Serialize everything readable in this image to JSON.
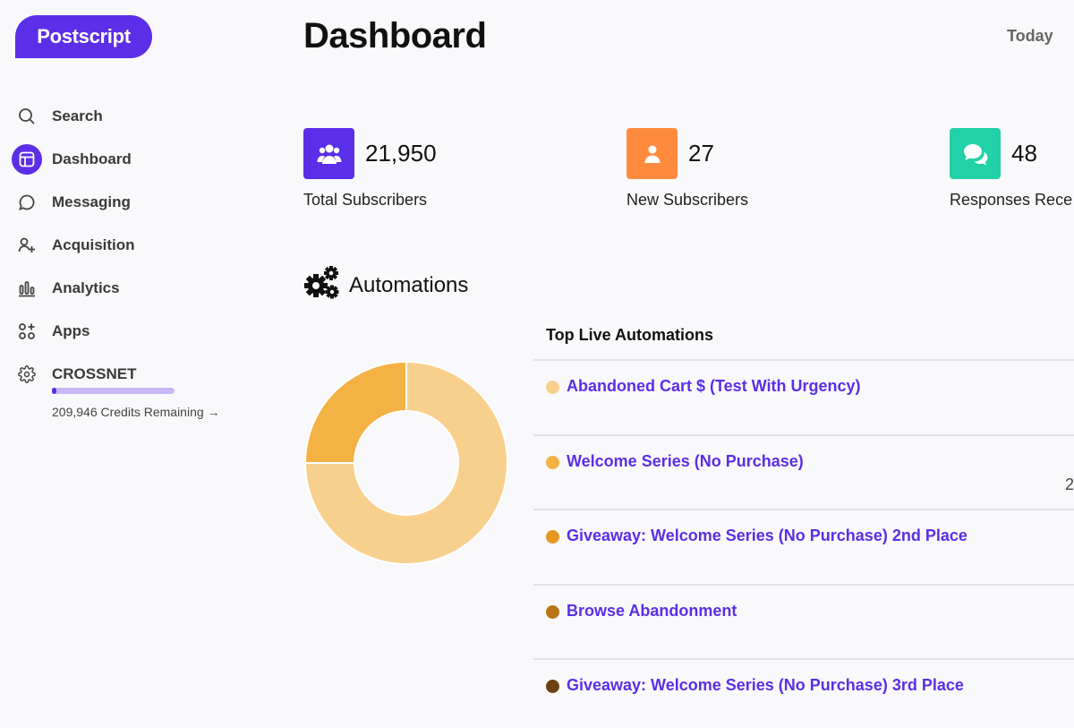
{
  "brand": {
    "logo_text": "Postscript"
  },
  "sidebar": {
    "items": [
      {
        "label": "Search",
        "icon": "search-icon"
      },
      {
        "label": "Dashboard",
        "icon": "dashboard-icon",
        "active": true
      },
      {
        "label": "Messaging",
        "icon": "chat-bubble-icon"
      },
      {
        "label": "Acquisition",
        "icon": "add-user-icon"
      },
      {
        "label": "Analytics",
        "icon": "bar-chart-icon"
      },
      {
        "label": "Apps",
        "icon": "apps-grid-icon"
      },
      {
        "label": "CROSSNET",
        "icon": "gear-icon"
      }
    ],
    "credits": {
      "text": "209,946 Credits Remaining →",
      "fill_fraction": 0.04
    }
  },
  "header": {
    "title": "Dashboard",
    "date_filter": "Today"
  },
  "stats": [
    {
      "value": "21,950",
      "label": "Total Subscribers",
      "icon": "users-group-icon",
      "color": "#5b2ee8"
    },
    {
      "value": "27",
      "label": "New Subscribers",
      "icon": "user-icon",
      "color": "#ff8a3d"
    },
    {
      "value": "48",
      "label": "Responses Rece",
      "icon": "chat-bubbles-icon",
      "color": "#22d1a6"
    }
  ],
  "automations": {
    "title": "Automations",
    "icon": "gears-icon",
    "list_title": "Top Live Automations",
    "items": [
      {
        "name": "Abandoned Cart $ (Test With Urgency)",
        "color": "#f8d08e",
        "extra": ""
      },
      {
        "name": "Welcome Series (No Purchase)",
        "color": "#f4b244",
        "extra": "2"
      },
      {
        "name": "Giveaway: Welcome Series (No Purchase) 2nd Place",
        "color": "#e6971e",
        "extra": ""
      },
      {
        "name": "Browse Abandonment",
        "color": "#b97316",
        "extra": ""
      },
      {
        "name": "Giveaway: Welcome Series (No Purchase) 3rd Place",
        "color": "#6b4111",
        "extra": ""
      }
    ],
    "chart_data": {
      "type": "pie",
      "slices": [
        {
          "name": "Abandoned Cart $ (Test With Urgency)",
          "value": 75,
          "color": "#f8d08e"
        },
        {
          "name": "Welcome Series (No Purchase)",
          "value": 25,
          "color": "#f4b244"
        }
      ]
    }
  }
}
